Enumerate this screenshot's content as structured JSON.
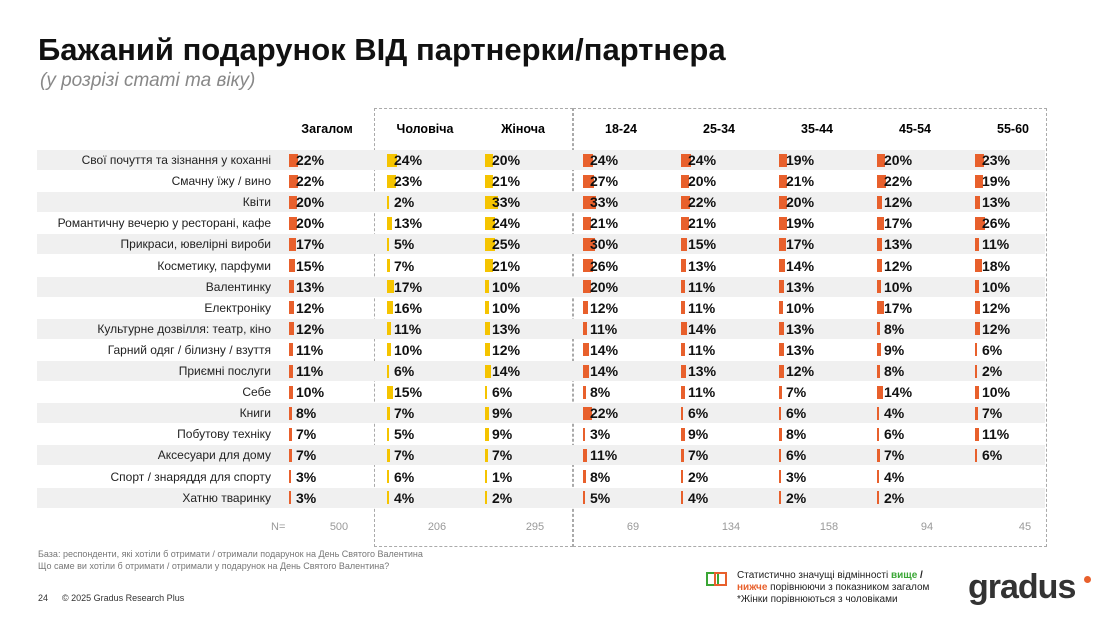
{
  "header": {
    "title": "Бажаний подарунок ВІД партнерки/партнера",
    "subtitle": "(у розрізі статі та віку)"
  },
  "table": {
    "columns": [
      "Загалом",
      "Чоловіча",
      "Жіноча",
      "18-24",
      "25-34",
      "35-44",
      "45-54",
      "55-60"
    ],
    "rows": [
      {
        "label": "Свої почуття та зізнання у коханні",
        "cells": [
          "22%",
          "24%",
          "20%",
          "24%",
          "24%",
          "19%",
          "20%",
          "23%"
        ]
      },
      {
        "label": "Смачну їжу / вино",
        "cells": [
          "22%",
          "23%",
          "21%",
          "27%",
          "20%",
          "21%",
          "22%",
          "19%"
        ]
      },
      {
        "label": "Квіти",
        "cells": [
          "20%",
          "2%",
          "33%",
          "33%",
          "22%",
          "20%",
          "12%",
          "13%"
        ]
      },
      {
        "label": "Романтичну вечерю у ресторані, кафе",
        "cells": [
          "20%",
          "13%",
          "24%",
          "21%",
          "21%",
          "19%",
          "17%",
          "26%"
        ]
      },
      {
        "label": "Прикраси, ювелірні вироби",
        "cells": [
          "17%",
          "5%",
          "25%",
          "30%",
          "15%",
          "17%",
          "13%",
          "11%"
        ]
      },
      {
        "label": "Косметику, парфуми",
        "cells": [
          "15%",
          "7%",
          "21%",
          "26%",
          "13%",
          "14%",
          "12%",
          "18%"
        ]
      },
      {
        "label": "Валентинку",
        "cells": [
          "13%",
          "17%",
          "10%",
          "20%",
          "11%",
          "13%",
          "10%",
          "10%"
        ]
      },
      {
        "label": "Електроніку",
        "cells": [
          "12%",
          "16%",
          "10%",
          "12%",
          "11%",
          "10%",
          "17%",
          "12%"
        ]
      },
      {
        "label": "Культурне дозвілля: театр, кіно",
        "cells": [
          "12%",
          "11%",
          "13%",
          "11%",
          "14%",
          "13%",
          "8%",
          "12%"
        ]
      },
      {
        "label": "Гарний одяг / білизну / взуття",
        "cells": [
          "11%",
          "10%",
          "12%",
          "14%",
          "11%",
          "13%",
          "9%",
          "6%"
        ]
      },
      {
        "label": "Приємні послуги",
        "cells": [
          "11%",
          "6%",
          "14%",
          "14%",
          "13%",
          "12%",
          "8%",
          "2%"
        ]
      },
      {
        "label": "Себе",
        "cells": [
          "10%",
          "15%",
          "6%",
          "8%",
          "11%",
          "7%",
          "14%",
          "10%"
        ]
      },
      {
        "label": "Книги",
        "cells": [
          "8%",
          "7%",
          "9%",
          "22%",
          "6%",
          "6%",
          "4%",
          "7%"
        ]
      },
      {
        "label": "Побутову техніку",
        "cells": [
          "7%",
          "5%",
          "9%",
          "3%",
          "9%",
          "8%",
          "6%",
          "11%"
        ]
      },
      {
        "label": "Аксесуари для дому",
        "cells": [
          "7%",
          "7%",
          "7%",
          "11%",
          "7%",
          "6%",
          "7%",
          "6%"
        ]
      },
      {
        "label": "Спорт / знаряддя для спорту",
        "cells": [
          "3%",
          "6%",
          "1%",
          "8%",
          "2%",
          "3%",
          "4%",
          null
        ]
      },
      {
        "label": "Хатню тваринку",
        "cells": [
          "3%",
          "4%",
          "2%",
          "5%",
          "4%",
          "2%",
          "2%",
          null
        ]
      }
    ],
    "n_label": "N=",
    "n": [
      "500",
      "206",
      "295",
      "69",
      "134",
      "158",
      "94",
      "45"
    ]
  },
  "footer": {
    "base": "База: респонденти, які хотіли б отримати / отримали подарунок на День Святого Валентина",
    "question": "Що саме ви хотіли б отримати / отримали у подарунок на День Святого Валентина?",
    "page": "24",
    "copyright": "© 2025 Gradus Research Plus",
    "legend": {
      "line1": "Статистично значущі відмінності ",
      "higher": "вище",
      "sep": " /",
      "lower": "нижче",
      "line2": " порівнюючи з показником загалом",
      "note": "*Жінки порівнюються з чоловіками"
    },
    "logo": "gradus"
  }
}
